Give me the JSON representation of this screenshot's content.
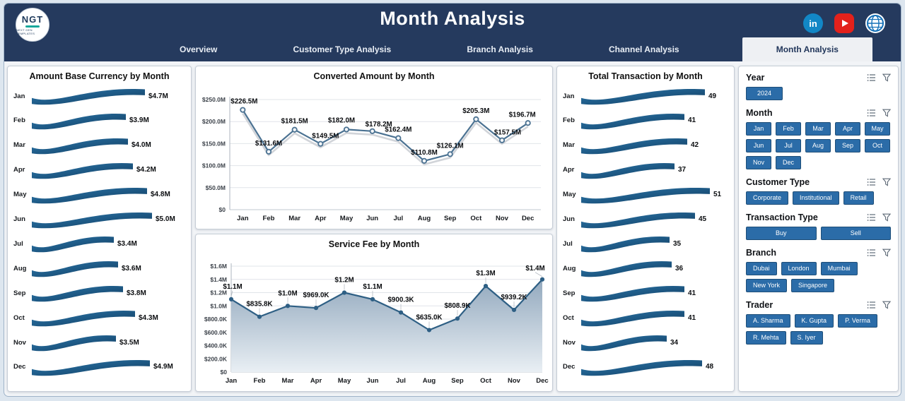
{
  "header": {
    "title": "Month Analysis",
    "logo": {
      "text": "NGT",
      "subtext": "NEXT GEN TEMPLATES"
    },
    "social_icons": [
      "linkedin",
      "youtube",
      "web"
    ]
  },
  "nav": {
    "tabs": [
      {
        "label": "Overview",
        "active": false
      },
      {
        "label": "Customer Type Analysis",
        "active": false
      },
      {
        "label": "Branch Analysis",
        "active": false
      },
      {
        "label": "Channel Analysis",
        "active": false
      },
      {
        "label": "Month Analysis",
        "active": true
      }
    ]
  },
  "chart_data": [
    {
      "id": "amount_base_currency",
      "type": "bar",
      "variant": "ribbon",
      "title": "Amount Base Currency by Month",
      "categories": [
        "Jan",
        "Feb",
        "Mar",
        "Apr",
        "May",
        "Jun",
        "Jul",
        "Aug",
        "Sep",
        "Oct",
        "Nov",
        "Dec"
      ],
      "values": [
        4.7,
        3.9,
        4.0,
        4.2,
        4.8,
        5.0,
        3.4,
        3.6,
        3.8,
        4.3,
        3.5,
        4.9
      ],
      "labels": [
        "$4.7M",
        "$3.9M",
        "$4.0M",
        "$4.2M",
        "$4.8M",
        "$5.0M",
        "$3.4M",
        "$3.6M",
        "$3.8M",
        "$4.3M",
        "$3.5M",
        "$4.9M"
      ]
    },
    {
      "id": "converted_amount",
      "type": "line",
      "title": "Converted Amount by Month",
      "categories": [
        "Jan",
        "Feb",
        "Mar",
        "Apr",
        "May",
        "Jun",
        "Jul",
        "Aug",
        "Sep",
        "Oct",
        "Nov",
        "Dec"
      ],
      "values": [
        226.5,
        131.6,
        181.5,
        149.5,
        182.0,
        178.2,
        162.4,
        110.8,
        126.1,
        205.3,
        157.5,
        196.7
      ],
      "labels": [
        "$226.5M",
        "$131.6M",
        "$181.5M",
        "$149.5M",
        "$182.0M",
        "$178.2M",
        "$162.4M",
        "$110.8M",
        "$126.1M",
        "$205.3M",
        "$157.5M",
        "$196.7M"
      ],
      "ylim": [
        0,
        250
      ],
      "yticks": [
        "$0",
        "$50.0M",
        "$100.0M",
        "$150.0M",
        "$200.0M",
        "$250.0M"
      ],
      "grid": true,
      "legend": "none"
    },
    {
      "id": "service_fee",
      "type": "area",
      "title": "Service Fee by Month",
      "categories": [
        "Jan",
        "Feb",
        "Mar",
        "Apr",
        "May",
        "Jun",
        "Jul",
        "Aug",
        "Sep",
        "Oct",
        "Nov",
        "Dec"
      ],
      "values": [
        1.1,
        0.8358,
        1.0,
        0.969,
        1.2,
        1.1,
        0.9003,
        0.635,
        0.8089,
        1.3,
        0.9392,
        1.4
      ],
      "labels": [
        "$1.1M",
        "$835.8K",
        "$1.0M",
        "$969.0K",
        "$1.2M",
        "$1.1M",
        "$900.3K",
        "$635.0K",
        "$808.9K",
        "$1.3M",
        "$939.2K",
        "$1.4M"
      ],
      "ylim": [
        0,
        1.6
      ],
      "yticks": [
        "$0",
        "$200.0K",
        "$400.0K",
        "$600.0K",
        "$800.0K",
        "$1.0M",
        "$1.2M",
        "$1.4M",
        "$1.6M"
      ],
      "grid": true,
      "legend": "none"
    },
    {
      "id": "total_transaction",
      "type": "bar",
      "variant": "ribbon",
      "title": "Total Transaction by Month",
      "categories": [
        "Jan",
        "Feb",
        "Mar",
        "Apr",
        "May",
        "Jun",
        "Jul",
        "Aug",
        "Sep",
        "Oct",
        "Nov",
        "Dec"
      ],
      "values": [
        49,
        41,
        42,
        37,
        51,
        45,
        35,
        36,
        41,
        41,
        34,
        48
      ],
      "labels": [
        "49",
        "41",
        "42",
        "37",
        "51",
        "45",
        "35",
        "36",
        "41",
        "41",
        "34",
        "48"
      ]
    }
  ],
  "filters": {
    "sections": [
      {
        "label": "Year",
        "items": [
          "2024"
        ]
      },
      {
        "label": "Month",
        "items": [
          "Jan",
          "Feb",
          "Mar",
          "Apr",
          "May",
          "Jun",
          "Jul",
          "Aug",
          "Sep",
          "Oct",
          "Nov",
          "Dec"
        ]
      },
      {
        "label": "Customer Type",
        "items": [
          "Corporate",
          "Institutional",
          "Retail"
        ]
      },
      {
        "label": "Transaction Type",
        "items": [
          "Buy",
          "Sell"
        ]
      },
      {
        "label": "Branch",
        "items": [
          "Dubai",
          "London",
          "Mumbai",
          "New York",
          "Singapore"
        ]
      },
      {
        "label": "Trader",
        "items": [
          "A. Sharma",
          "K. Gupta",
          "P. Verma",
          "R. Mehta",
          "S. Iyer"
        ]
      }
    ]
  },
  "colors": {
    "header_bg": "#253A5E",
    "accent_blue": "#2B6CA8",
    "ribbon_dark": "#133C5E",
    "ribbon_light": "#2F7CB0",
    "line_stroke": "#4B7292",
    "area_line": "#2E5F84",
    "linkedin_blue": "#1287C6",
    "youtube_red": "#E3211B"
  }
}
